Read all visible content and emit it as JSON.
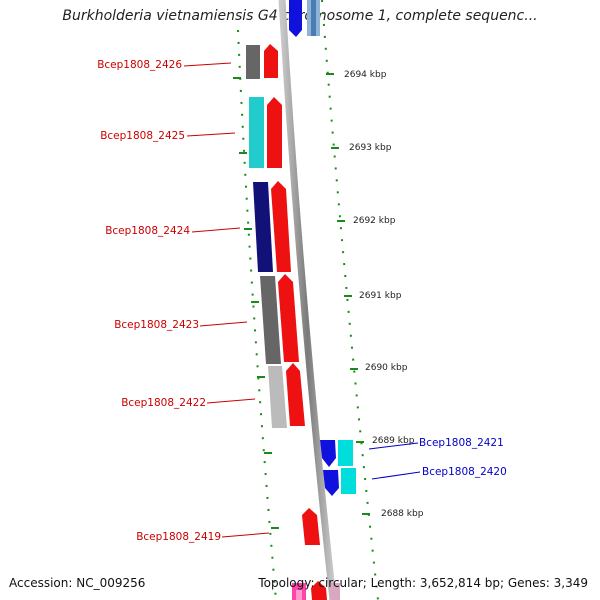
{
  "title": "Burkholderia vietnamiensis G4 chromosome 1, complete sequenc...",
  "footer": {
    "accession": "Accession: NC_009256",
    "summary": "Topology: circular; Length: 3,652,814 bp; Genes: 3,349"
  },
  "ticks": [
    "2694 kbp",
    "2693 kbp",
    "2692 kbp",
    "2691 kbp",
    "2690 kbp",
    "2689 kbp",
    "2688 kbp"
  ],
  "genes": [
    {
      "label": "Bcep1808_2426",
      "strand": "reverse",
      "color": "#cc0000",
      "feature_color": "#666666"
    },
    {
      "label": "Bcep1808_2425",
      "strand": "reverse",
      "color": "#cc0000",
      "feature_color": "#22cccc"
    },
    {
      "label": "Bcep1808_2424",
      "strand": "reverse",
      "color": "#cc0000",
      "feature_color": "#111177"
    },
    {
      "label": "Bcep1808_2423",
      "strand": "reverse",
      "color": "#cc0000",
      "feature_color": "#666666"
    },
    {
      "label": "Bcep1808_2422",
      "strand": "reverse",
      "color": "#cc0000",
      "feature_color": "#bbbbbb"
    },
    {
      "label": "Bcep1808_2421",
      "strand": "forward",
      "color": "#0000cc",
      "feature_color": "#00dddd"
    },
    {
      "label": "Bcep1808_2420",
      "strand": "forward",
      "color": "#0000cc",
      "feature_color": "#00dddd"
    },
    {
      "label": "Bcep1808_2419",
      "strand": "reverse",
      "color": "#cc0000",
      "feature_color": null
    }
  ]
}
